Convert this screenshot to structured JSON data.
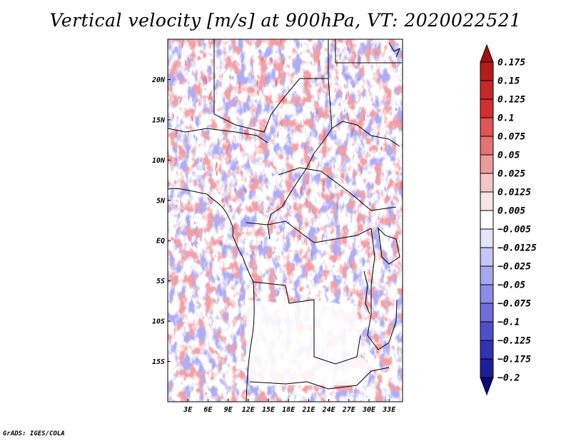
{
  "title": "Vertical velocity [m/s] at 900hPa, VT: 2020022521",
  "credit": "GrADS: IGES/COLA",
  "colors": {
    "frame": "#000000",
    "border_lines": "#000000"
  },
  "chart_data": {
    "type": "heatmap",
    "title": "Vertical velocity [m/s] at 900hPa, VT: 2020022521",
    "variable": "Vertical velocity",
    "units": "m/s",
    "level": "900hPa",
    "valid_time": "2020022521",
    "lon_range": [
      0,
      35
    ],
    "lat_range": [
      -20,
      25
    ],
    "x_ticks": [
      {
        "value": 3,
        "label": "3E"
      },
      {
        "value": 6,
        "label": "6E"
      },
      {
        "value": 9,
        "label": "9E"
      },
      {
        "value": 12,
        "label": "12E"
      },
      {
        "value": 15,
        "label": "15E"
      },
      {
        "value": 18,
        "label": "18E"
      },
      {
        "value": 21,
        "label": "21E"
      },
      {
        "value": 24,
        "label": "24E"
      },
      {
        "value": 27,
        "label": "27E"
      },
      {
        "value": 30,
        "label": "30E"
      },
      {
        "value": 33,
        "label": "33E"
      }
    ],
    "y_ticks": [
      {
        "value": 20,
        "label": "20N"
      },
      {
        "value": 15,
        "label": "15N"
      },
      {
        "value": 10,
        "label": "10N"
      },
      {
        "value": 5,
        "label": "5N"
      },
      {
        "value": 0,
        "label": "EQ"
      },
      {
        "value": -5,
        "label": "5S"
      },
      {
        "value": -10,
        "label": "10S"
      },
      {
        "value": -15,
        "label": "15S"
      }
    ],
    "colorbar": {
      "levels": [
        "0.175",
        "0.15",
        "0.125",
        "0.1",
        "0.075",
        "0.05",
        "0.025",
        "0.0125",
        "0.005",
        "−0.005",
        "−0.0125",
        "−0.025",
        "−0.05",
        "−0.075",
        "−0.1",
        "−0.125",
        "−0.175",
        "−0.2"
      ],
      "colors": [
        "#a50f15",
        "#b71c1c",
        "#c62828",
        "#d32f2f",
        "#e05555",
        "#e57373",
        "#ef9a9a",
        "#f6c6c6",
        "#fbe4e4",
        "#ffffff",
        "#e4e4fb",
        "#c6c6f6",
        "#a8a8f0",
        "#8c8ce8",
        "#6f6fdc",
        "#5050cc",
        "#3232b4",
        "#1e1e9c",
        "#0a0a78"
      ]
    }
  }
}
